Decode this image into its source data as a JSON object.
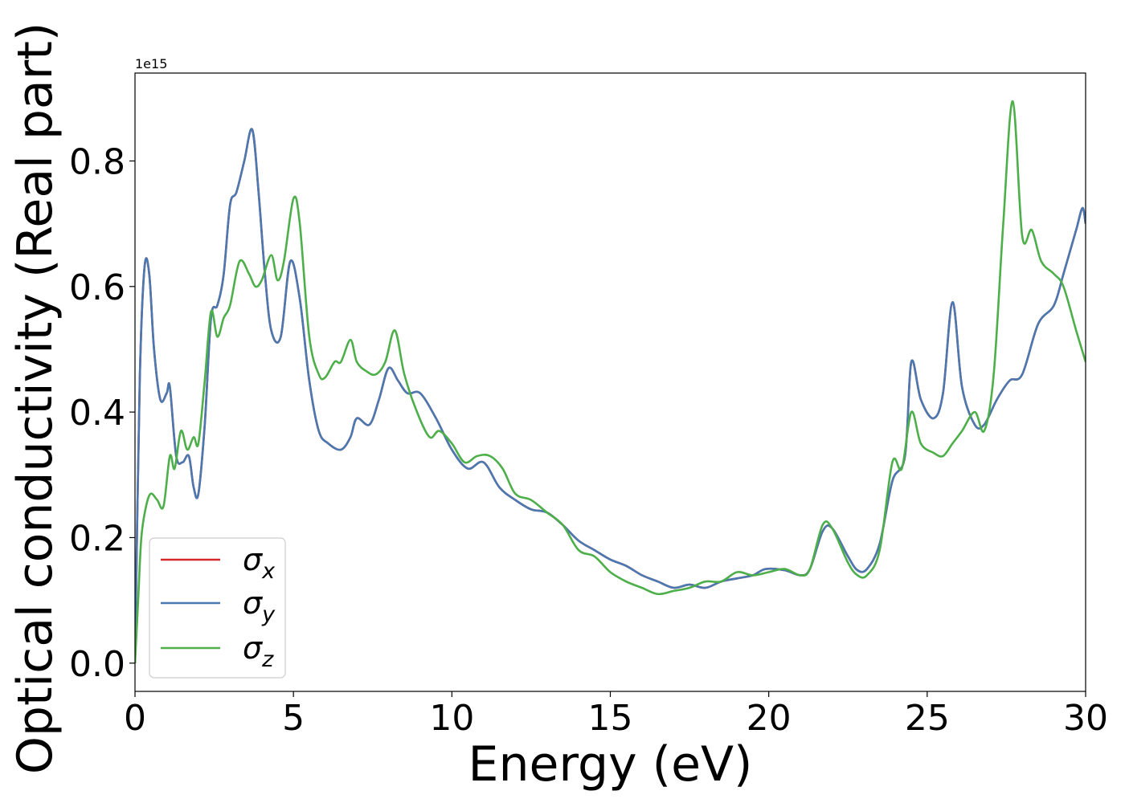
{
  "chart_data": {
    "type": "line",
    "xlabel": "Energy (eV)",
    "ylabel": "Optical conductivity (Real part)",
    "offset_label": "1e15",
    "xlim": [
      0,
      30
    ],
    "ylim": [
      -0.045,
      0.94
    ],
    "x_ticks": [
      0,
      5,
      10,
      15,
      20,
      25,
      30
    ],
    "x_tick_labels": [
      "0",
      "5",
      "10",
      "15",
      "20",
      "25",
      "30"
    ],
    "y_ticks": [
      0.0,
      0.2,
      0.4,
      0.6,
      0.8
    ],
    "y_tick_labels": [
      "0.0",
      "0.2",
      "0.4",
      "0.6",
      "0.8"
    ],
    "grid": false,
    "legend_position": "bottom-left",
    "colors": {
      "sigma_x": "#d62728",
      "sigma_y": "#4a78b0",
      "sigma_z": "#4daf4a"
    },
    "series": [
      {
        "name": "σ_x",
        "legend_main": "σ",
        "legend_sub": "x",
        "color": "#d62728",
        "x": [
          0,
          0.15,
          0.3,
          0.45,
          0.6,
          0.8,
          1.0,
          1.1,
          1.3,
          1.5,
          1.7,
          1.85,
          2.0,
          2.2,
          2.4,
          2.6,
          2.8,
          3.0,
          3.2,
          3.45,
          3.7,
          3.9,
          4.1,
          4.3,
          4.6,
          4.9,
          5.2,
          5.5,
          5.8,
          6.1,
          6.5,
          6.8,
          7.0,
          7.4,
          7.7,
          8.0,
          8.3,
          8.6,
          9.0,
          9.5,
          10.0,
          10.5,
          11.0,
          11.5,
          12.0,
          12.5,
          13.0,
          13.5,
          14.0,
          14.5,
          15.0,
          15.5,
          16.0,
          16.5,
          17.0,
          17.5,
          18.0,
          18.5,
          19.0,
          19.5,
          19.9,
          20.5,
          21.0,
          21.3,
          21.7,
          22.0,
          22.5,
          22.8,
          23.1,
          23.5,
          23.9,
          24.3,
          24.5,
          24.8,
          25.2,
          25.5,
          25.8,
          26.1,
          26.5,
          26.8,
          27.2,
          27.6,
          28.0,
          28.5,
          29.0,
          29.3,
          29.7,
          29.9,
          30.0
        ],
        "y": [
          0.0,
          0.45,
          0.63,
          0.62,
          0.5,
          0.42,
          0.43,
          0.44,
          0.33,
          0.32,
          0.33,
          0.28,
          0.27,
          0.38,
          0.55,
          0.57,
          0.62,
          0.73,
          0.75,
          0.8,
          0.85,
          0.75,
          0.62,
          0.53,
          0.52,
          0.64,
          0.58,
          0.45,
          0.37,
          0.35,
          0.34,
          0.36,
          0.39,
          0.38,
          0.42,
          0.47,
          0.45,
          0.43,
          0.43,
          0.39,
          0.34,
          0.31,
          0.32,
          0.28,
          0.26,
          0.245,
          0.24,
          0.22,
          0.195,
          0.18,
          0.165,
          0.155,
          0.14,
          0.13,
          0.12,
          0.125,
          0.12,
          0.13,
          0.135,
          0.14,
          0.15,
          0.148,
          0.14,
          0.15,
          0.21,
          0.215,
          0.17,
          0.148,
          0.15,
          0.19,
          0.29,
          0.33,
          0.48,
          0.42,
          0.39,
          0.43,
          0.575,
          0.44,
          0.38,
          0.38,
          0.42,
          0.45,
          0.46,
          0.54,
          0.57,
          0.62,
          0.69,
          0.725,
          0.7
        ]
      },
      {
        "name": "σ_y",
        "legend_main": "σ",
        "legend_sub": "y",
        "color": "#4a78b0",
        "x": [
          0,
          0.15,
          0.3,
          0.45,
          0.6,
          0.8,
          1.0,
          1.1,
          1.3,
          1.5,
          1.7,
          1.85,
          2.0,
          2.2,
          2.4,
          2.6,
          2.8,
          3.0,
          3.2,
          3.45,
          3.7,
          3.9,
          4.1,
          4.3,
          4.6,
          4.9,
          5.2,
          5.5,
          5.8,
          6.1,
          6.5,
          6.8,
          7.0,
          7.4,
          7.7,
          8.0,
          8.3,
          8.6,
          9.0,
          9.5,
          10.0,
          10.5,
          11.0,
          11.5,
          12.0,
          12.5,
          13.0,
          13.5,
          14.0,
          14.5,
          15.0,
          15.5,
          16.0,
          16.5,
          17.0,
          17.5,
          18.0,
          18.5,
          19.0,
          19.5,
          19.9,
          20.5,
          21.0,
          21.3,
          21.7,
          22.0,
          22.5,
          22.8,
          23.1,
          23.5,
          23.9,
          24.3,
          24.5,
          24.8,
          25.2,
          25.5,
          25.8,
          26.1,
          26.5,
          26.8,
          27.2,
          27.6,
          28.0,
          28.5,
          29.0,
          29.3,
          29.7,
          29.9,
          30.0
        ],
        "y": [
          0.0,
          0.45,
          0.63,
          0.62,
          0.5,
          0.42,
          0.43,
          0.44,
          0.33,
          0.32,
          0.33,
          0.28,
          0.27,
          0.38,
          0.55,
          0.57,
          0.62,
          0.73,
          0.75,
          0.8,
          0.85,
          0.75,
          0.62,
          0.53,
          0.52,
          0.64,
          0.58,
          0.45,
          0.37,
          0.35,
          0.34,
          0.36,
          0.39,
          0.38,
          0.42,
          0.47,
          0.45,
          0.43,
          0.43,
          0.39,
          0.34,
          0.31,
          0.32,
          0.28,
          0.26,
          0.245,
          0.24,
          0.22,
          0.195,
          0.18,
          0.165,
          0.155,
          0.14,
          0.13,
          0.12,
          0.125,
          0.12,
          0.13,
          0.135,
          0.14,
          0.15,
          0.148,
          0.14,
          0.15,
          0.21,
          0.215,
          0.17,
          0.148,
          0.15,
          0.19,
          0.29,
          0.33,
          0.48,
          0.42,
          0.39,
          0.43,
          0.575,
          0.44,
          0.38,
          0.38,
          0.42,
          0.45,
          0.46,
          0.54,
          0.57,
          0.62,
          0.69,
          0.725,
          0.7
        ]
      },
      {
        "name": "σ_z",
        "legend_main": "σ",
        "legend_sub": "z",
        "color": "#4daf4a",
        "x": [
          0,
          0.1,
          0.2,
          0.35,
          0.5,
          0.7,
          0.9,
          1.1,
          1.25,
          1.45,
          1.65,
          1.85,
          2.0,
          2.2,
          2.4,
          2.6,
          2.8,
          3.0,
          3.3,
          3.6,
          3.8,
          4.0,
          4.3,
          4.5,
          4.7,
          5.0,
          5.2,
          5.5,
          5.8,
          6.0,
          6.3,
          6.5,
          6.8,
          7.0,
          7.3,
          7.6,
          7.9,
          8.2,
          8.5,
          8.9,
          9.3,
          9.6,
          10.0,
          10.4,
          10.8,
          11.2,
          11.6,
          12.0,
          12.5,
          13.0,
          13.5,
          14.0,
          14.5,
          15.0,
          15.5,
          16.0,
          16.5,
          17.0,
          17.5,
          18.0,
          18.5,
          19.0,
          19.5,
          20.0,
          20.5,
          21.0,
          21.3,
          21.7,
          22.0,
          22.5,
          22.8,
          23.1,
          23.5,
          23.9,
          24.2,
          24.5,
          24.8,
          25.2,
          25.5,
          25.8,
          26.1,
          26.5,
          26.8,
          27.1,
          27.4,
          27.7,
          28.0,
          28.3,
          28.6,
          29.0,
          29.3,
          29.7,
          30.0
        ],
        "y": [
          0.0,
          0.1,
          0.2,
          0.25,
          0.27,
          0.26,
          0.25,
          0.33,
          0.31,
          0.37,
          0.34,
          0.36,
          0.35,
          0.45,
          0.56,
          0.52,
          0.55,
          0.57,
          0.64,
          0.62,
          0.6,
          0.61,
          0.65,
          0.61,
          0.64,
          0.74,
          0.7,
          0.52,
          0.46,
          0.455,
          0.48,
          0.48,
          0.515,
          0.48,
          0.465,
          0.46,
          0.48,
          0.53,
          0.46,
          0.4,
          0.36,
          0.37,
          0.35,
          0.32,
          0.33,
          0.33,
          0.31,
          0.27,
          0.26,
          0.24,
          0.22,
          0.18,
          0.17,
          0.145,
          0.13,
          0.12,
          0.11,
          0.115,
          0.12,
          0.13,
          0.13,
          0.145,
          0.14,
          0.145,
          0.15,
          0.14,
          0.15,
          0.22,
          0.215,
          0.16,
          0.14,
          0.14,
          0.18,
          0.32,
          0.31,
          0.4,
          0.35,
          0.335,
          0.33,
          0.35,
          0.37,
          0.4,
          0.37,
          0.46,
          0.7,
          0.895,
          0.68,
          0.69,
          0.64,
          0.62,
          0.6,
          0.53,
          0.48
        ]
      }
    ]
  }
}
